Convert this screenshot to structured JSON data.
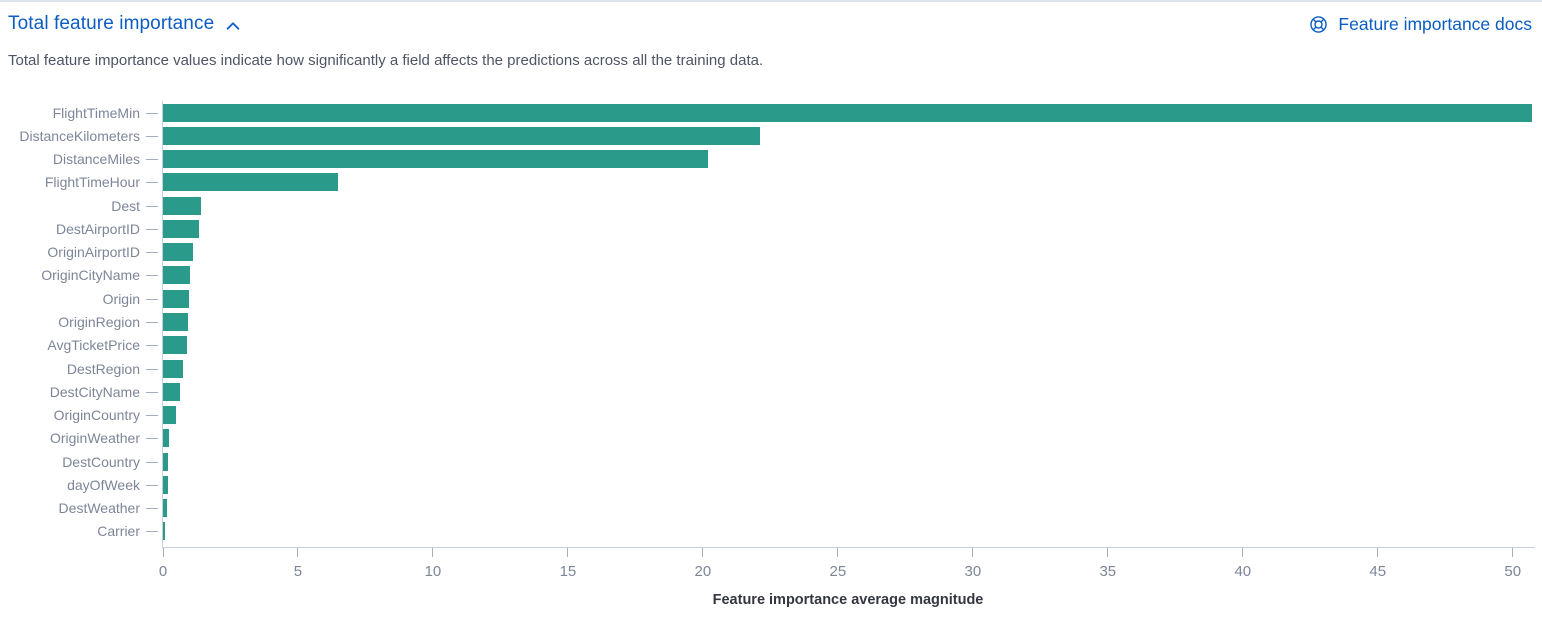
{
  "header": {
    "title": "Total feature importance",
    "docs_link_label": "Feature importance docs",
    "subtitle": "Total feature importance values indicate how significantly a field affects the predictions across all the training data."
  },
  "colors": {
    "link_blue": "#0b5dc2",
    "bar_teal": "#2a9a8a",
    "axis_line": "#c9cedb",
    "tick_mark": "#a7aebc",
    "axis_label_text": "#7d8698",
    "subtitle_text": "#4f5565",
    "axis_title_text": "#343741"
  },
  "icons": {
    "collapse": "chevron-up-icon",
    "docs": "lifebuoy-help-icon"
  },
  "chart_data": {
    "type": "bar",
    "orientation": "horizontal",
    "title": "",
    "xlabel": "Feature importance average magnitude",
    "ylabel": "",
    "xlim": [
      0,
      50.75
    ],
    "x_ticks": [
      0,
      5,
      10,
      15,
      20,
      25,
      30,
      35,
      40,
      45,
      50
    ],
    "grid": false,
    "legend": "none",
    "bar_color": "#2a9a8a",
    "categories": [
      "FlightTimeMin",
      "DistanceKilometers",
      "DistanceMiles",
      "FlightTimeHour",
      "Dest",
      "DestAirportID",
      "OriginAirportID",
      "OriginCityName",
      "Origin",
      "OriginRegion",
      "AvgTicketPrice",
      "DestRegion",
      "DestCityName",
      "OriginCountry",
      "OriginWeather",
      "DestCountry",
      "dayOfWeek",
      "DestWeather",
      "Carrier"
    ],
    "values": [
      50.7,
      22.1,
      20.2,
      6.5,
      1.4,
      1.35,
      1.1,
      1.0,
      0.98,
      0.93,
      0.9,
      0.73,
      0.63,
      0.47,
      0.23,
      0.2,
      0.18,
      0.15,
      0.05
    ]
  }
}
